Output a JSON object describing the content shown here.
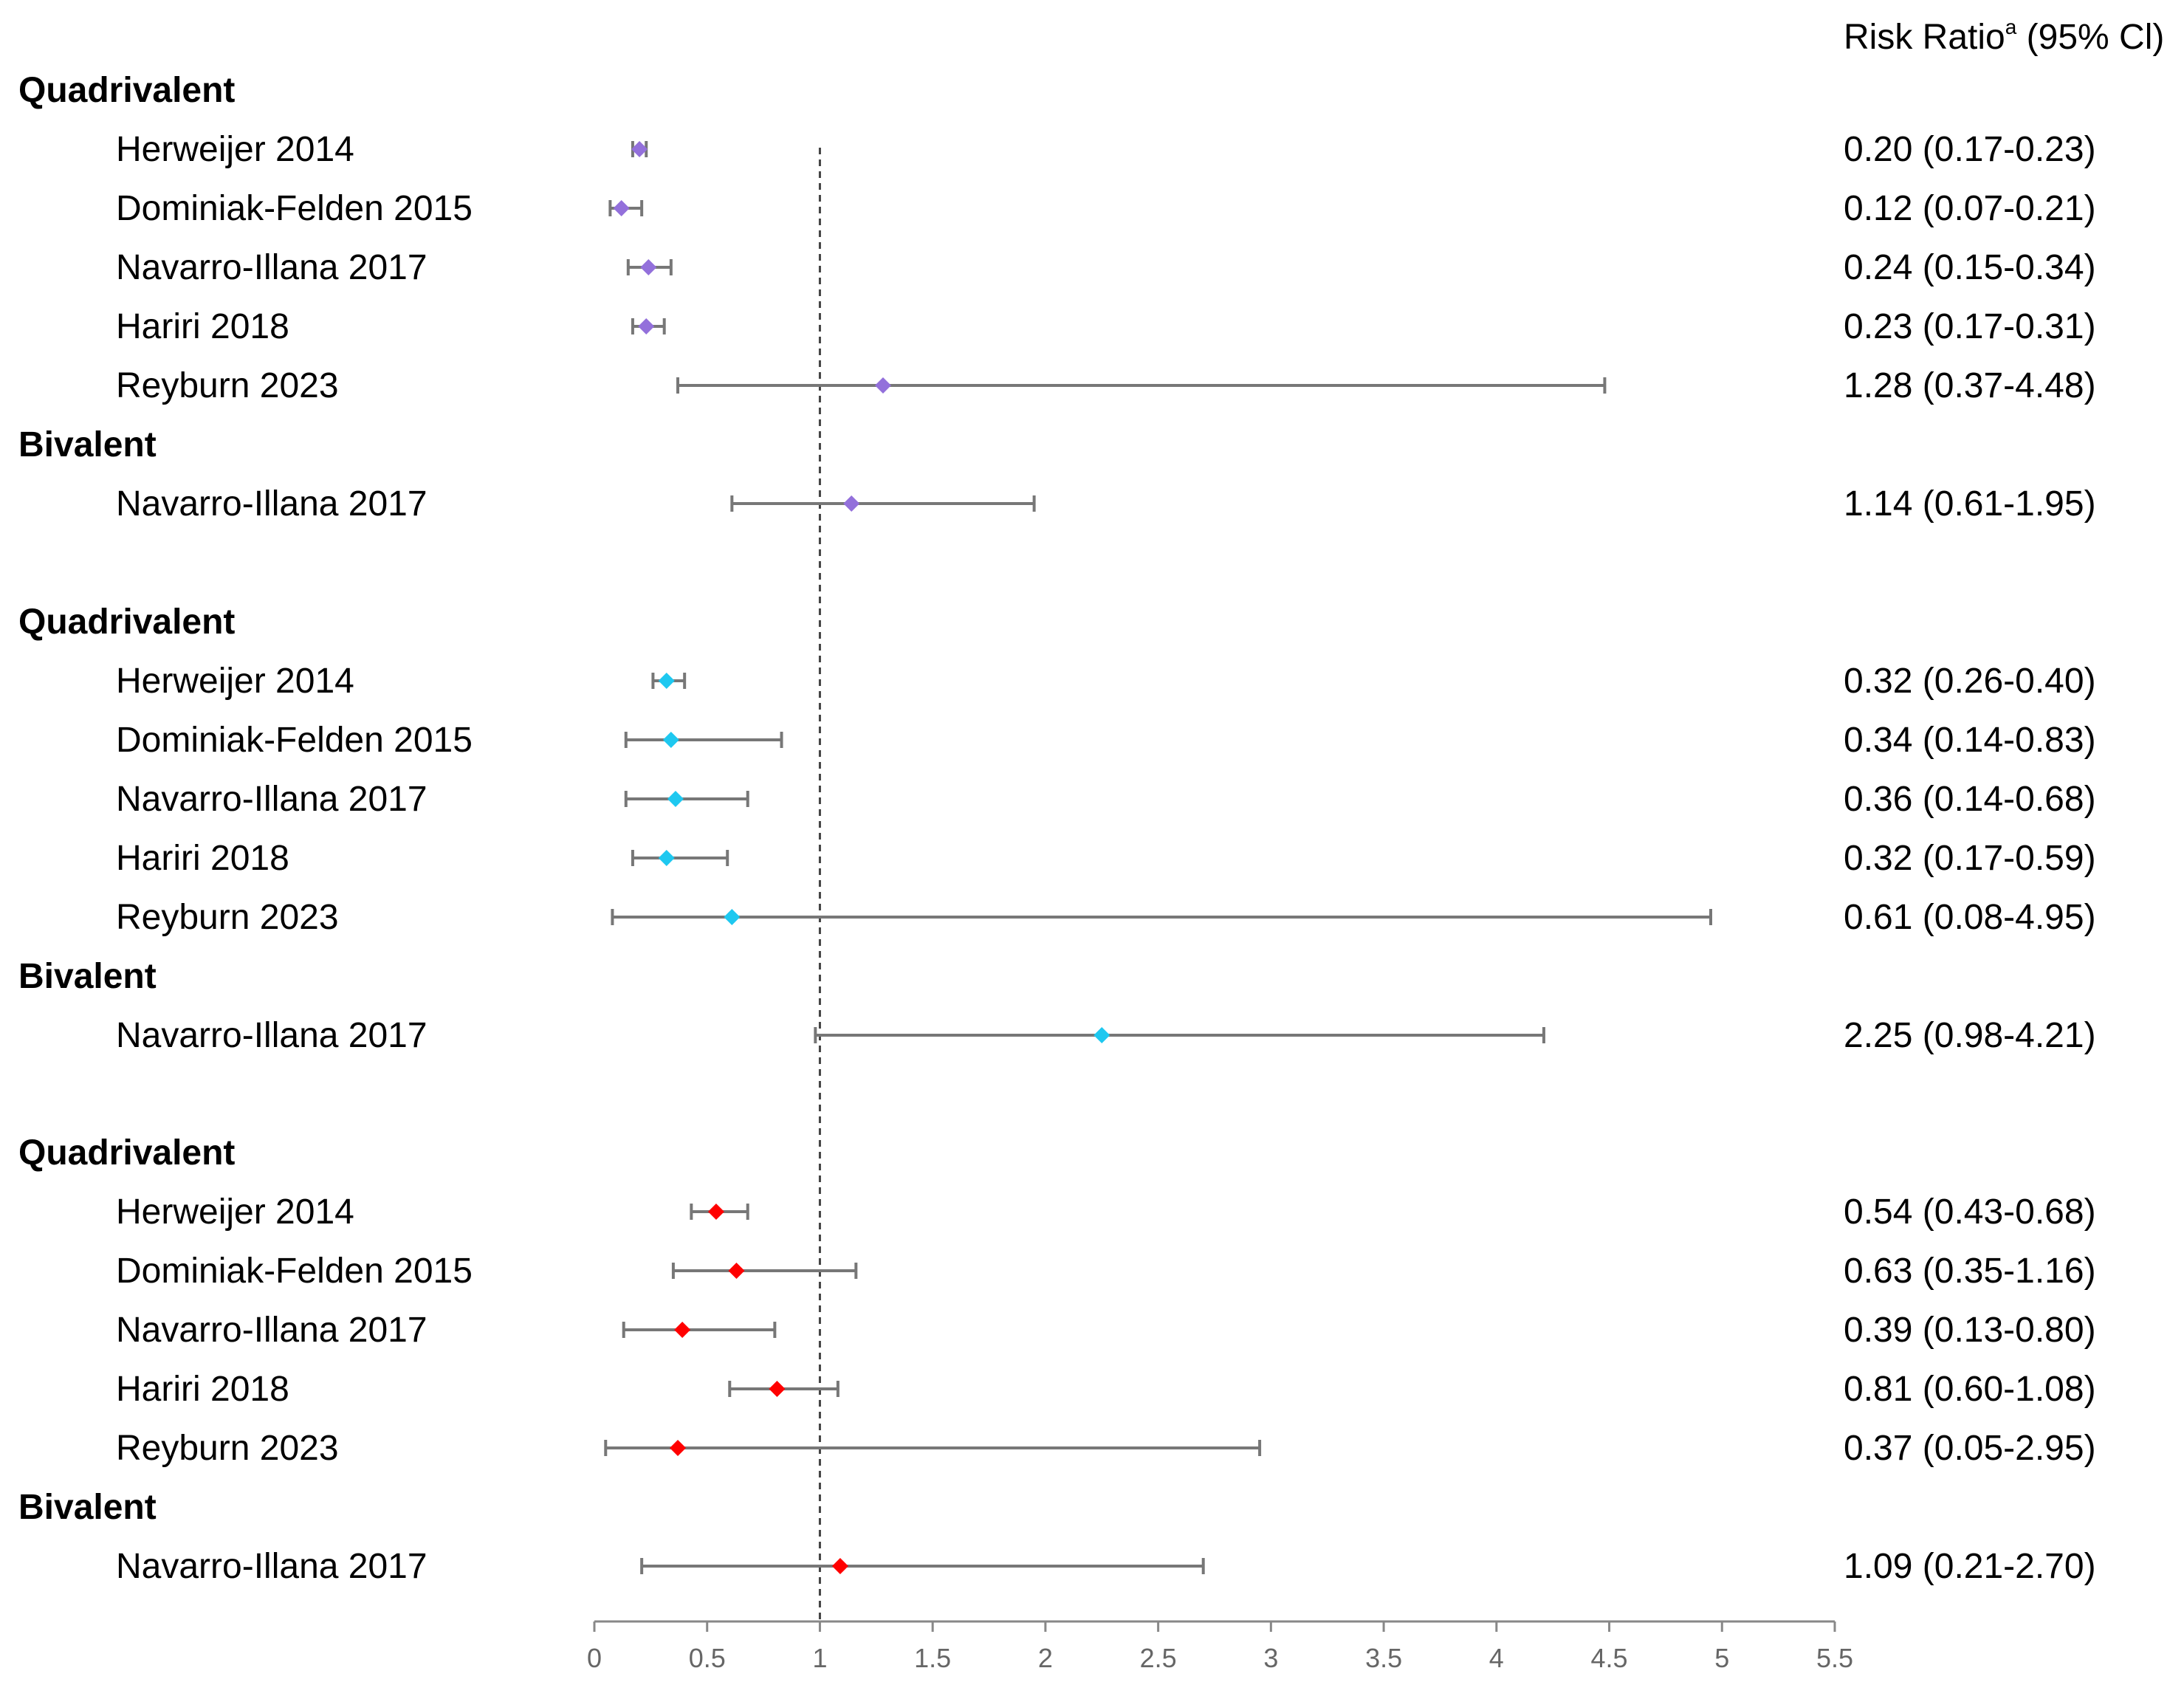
{
  "chart_data": {
    "type": "forest",
    "column_header": "Risk Ratio",
    "column_header_sup": "a",
    "column_header_suffix": " (95% Cl)",
    "xlim": [
      0,
      5.5
    ],
    "xticks": [
      "0",
      "0.5",
      "1",
      "1.5",
      "2",
      "2.5",
      "3",
      "3.5",
      "4",
      "4.5",
      "5",
      "5.5"
    ],
    "reference_line": 1,
    "panels": [
      {
        "color": "#9370DB",
        "groups": [
          {
            "name": "Quadrivalent",
            "rows": [
              {
                "study": "Herweijer 2014",
                "rr": 0.2,
                "lo": 0.17,
                "hi": 0.23,
                "text": "0.20 (0.17-0.23)"
              },
              {
                "study": "Dominiak-Felden 2015",
                "rr": 0.12,
                "lo": 0.07,
                "hi": 0.21,
                "text": "0.12 (0.07-0.21)"
              },
              {
                "study": "Navarro-Illana 2017",
                "rr": 0.24,
                "lo": 0.15,
                "hi": 0.34,
                "text": "0.24 (0.15-0.34)"
              },
              {
                "study": "Hariri 2018",
                "rr": 0.23,
                "lo": 0.17,
                "hi": 0.31,
                "text": "0.23 (0.17-0.31)"
              },
              {
                "study": "Reyburn 2023",
                "rr": 1.28,
                "lo": 0.37,
                "hi": 4.48,
                "text": "1.28 (0.37-4.48)"
              }
            ]
          },
          {
            "name": "Bivalent",
            "rows": [
              {
                "study": "Navarro-Illana 2017",
                "rr": 1.14,
                "lo": 0.61,
                "hi": 1.95,
                "text": "1.14 (0.61-1.95)"
              }
            ]
          }
        ]
      },
      {
        "color": "#1EC8F0",
        "groups": [
          {
            "name": "Quadrivalent",
            "rows": [
              {
                "study": "Herweijer 2014",
                "rr": 0.32,
                "lo": 0.26,
                "hi": 0.4,
                "text": "0.32 (0.26-0.40)"
              },
              {
                "study": "Dominiak-Felden 2015",
                "rr": 0.34,
                "lo": 0.14,
                "hi": 0.83,
                "text": "0.34 (0.14-0.83)"
              },
              {
                "study": "Navarro-Illana 2017",
                "rr": 0.36,
                "lo": 0.14,
                "hi": 0.68,
                "text": "0.36 (0.14-0.68)"
              },
              {
                "study": "Hariri 2018",
                "rr": 0.32,
                "lo": 0.17,
                "hi": 0.59,
                "text": "0.32 (0.17-0.59)"
              },
              {
                "study": "Reyburn 2023",
                "rr": 0.61,
                "lo": 0.08,
                "hi": 4.95,
                "text": "0.61 (0.08-4.95)"
              }
            ]
          },
          {
            "name": "Bivalent",
            "rows": [
              {
                "study": "Navarro-Illana 2017",
                "rr": 2.25,
                "lo": 0.98,
                "hi": 4.21,
                "text": "2.25 (0.98-4.21)"
              }
            ]
          }
        ]
      },
      {
        "color": "#FF0000",
        "groups": [
          {
            "name": "Quadrivalent",
            "rows": [
              {
                "study": "Herweijer 2014",
                "rr": 0.54,
                "lo": 0.43,
                "hi": 0.68,
                "text": "0.54 (0.43-0.68)"
              },
              {
                "study": "Dominiak-Felden 2015",
                "rr": 0.63,
                "lo": 0.35,
                "hi": 1.16,
                "text": "0.63 (0.35-1.16)"
              },
              {
                "study": "Navarro-Illana 2017",
                "rr": 0.39,
                "lo": 0.13,
                "hi": 0.8,
                "text": "0.39 (0.13-0.80)"
              },
              {
                "study": "Hariri 2018",
                "rr": 0.81,
                "lo": 0.6,
                "hi": 1.08,
                "text": "0.81 (0.60-1.08)"
              },
              {
                "study": "Reyburn 2023",
                "rr": 0.37,
                "lo": 0.05,
                "hi": 2.95,
                "text": "0.37 (0.05-2.95)"
              }
            ]
          },
          {
            "name": "Bivalent",
            "rows": [
              {
                "study": "Navarro-Illana 2017",
                "rr": 1.09,
                "lo": 0.21,
                "hi": 2.7,
                "text": "1.09 (0.21-2.70)"
              }
            ]
          }
        ]
      }
    ]
  }
}
